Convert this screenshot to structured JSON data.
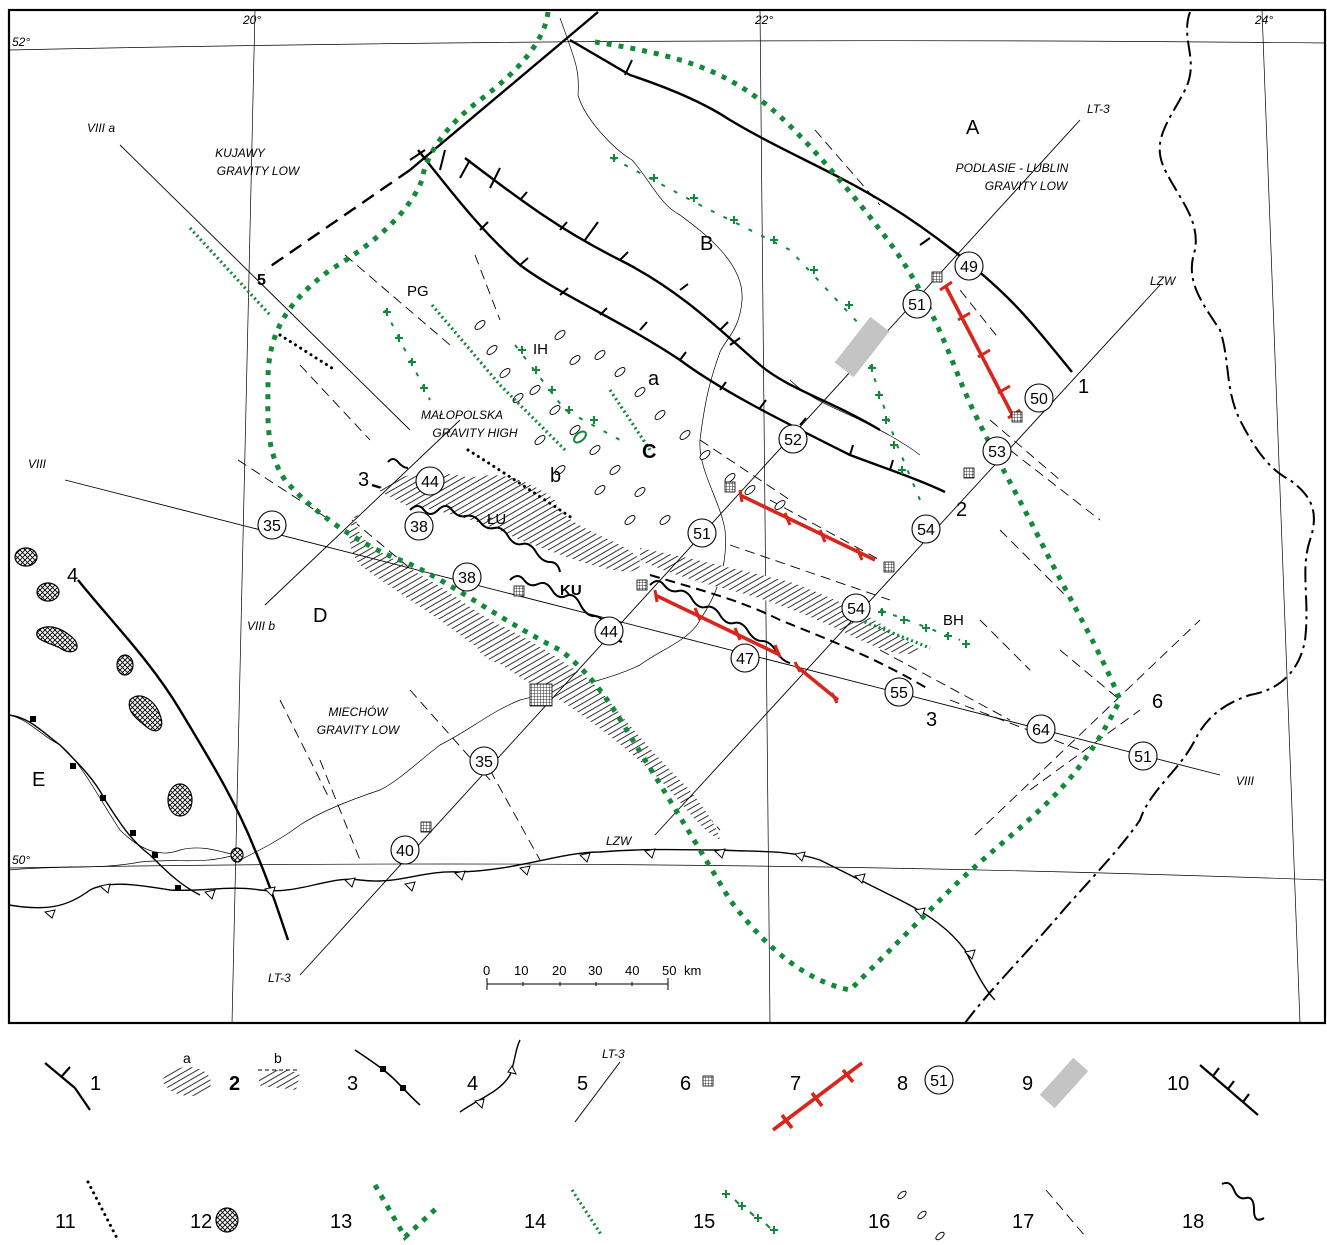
{
  "colors": {
    "ink": "#000000",
    "accent_red": "#d9261c",
    "accent_green": "#13893a",
    "grey_block": "#c4c4c4"
  },
  "graticule": {
    "lon_20": "20°",
    "lon_22": "22°",
    "lon_24": "24°",
    "lat_52": "52°",
    "lat_50": "50°"
  },
  "regions": {
    "A": "A",
    "B": "B",
    "C": "C",
    "D": "D",
    "E": "E",
    "a": "a",
    "b": "b"
  },
  "gravity_labels": {
    "kujawy_1": "KUJAWY",
    "kujawy_2": "GRAVITY LOW",
    "podlasie_1": "PODLASIE - LUBLIN",
    "podlasie_2": "GRAVITY LOW",
    "malopolska_1": "MAŁOPOLSKA",
    "malopolska_2": "GRAVITY HIGH",
    "miechow_1": "MIECHÓW",
    "miechow_2": "GRAVITY LOW"
  },
  "place_labels": {
    "PG": "PG",
    "IH": "IH",
    "LU": "ŁU",
    "KU": "KU",
    "BH": "BH"
  },
  "profile_labels": {
    "VIIIa": "VIII a",
    "VIIIb": "VIII b",
    "VIII_left": "VIII",
    "VIII_right": "VIII",
    "LT3_top": "LT-3",
    "LT3_bottom": "LT-3",
    "LZW_top": "LZW",
    "LZW_bottom": "LZW"
  },
  "zone_numbers": {
    "n1": "1",
    "n2": "2",
    "n3_left": "3",
    "n3_right": "3",
    "n4": "4",
    "n5": "5",
    "n6": "6"
  },
  "depth_circles": [
    "49",
    "51",
    "50",
    "53",
    "52",
    "51",
    "54",
    "54",
    "44",
    "38",
    "38",
    "35",
    "44",
    "47",
    "55",
    "64",
    "51",
    "35",
    "40"
  ],
  "scale_bar": {
    "ticks": [
      "0",
      "10",
      "20",
      "30",
      "40",
      "50"
    ],
    "unit": "km"
  },
  "legend": [
    {
      "num": "1",
      "symbol": "normal-fault-symbol"
    },
    {
      "num": "2",
      "symbol": "hatched-zone-symbol",
      "sub_a": "a",
      "sub_b": "b"
    },
    {
      "num": "3",
      "symbol": "thrust-fault-symbol"
    },
    {
      "num": "4",
      "symbol": "overthrust-front-symbol"
    },
    {
      "num": "5",
      "symbol": "profile-line-symbol",
      "sample": "LT-3"
    },
    {
      "num": "6",
      "symbol": "borehole-grid-symbol"
    },
    {
      "num": "7",
      "symbol": "red-crossed-line-symbol"
    },
    {
      "num": "8",
      "symbol": "depth-circle-symbol",
      "sample": "51"
    },
    {
      "num": "9",
      "symbol": "grey-block-symbol"
    },
    {
      "num": "10",
      "symbol": "ticked-fault-symbol"
    },
    {
      "num": "11",
      "symbol": "black-dotted-line-symbol"
    },
    {
      "num": "12",
      "symbol": "crosshatched-body-symbol"
    },
    {
      "num": "13",
      "symbol": "green-square-dotted-line-symbol"
    },
    {
      "num": "14",
      "symbol": "green-dotted-line-symbol"
    },
    {
      "num": "15",
      "symbol": "green-cross-line-symbol"
    },
    {
      "num": "16",
      "symbol": "ellipse-chain-symbol"
    },
    {
      "num": "17",
      "symbol": "dashed-line-symbol"
    },
    {
      "num": "18",
      "symbol": "wavy-line-symbol"
    }
  ]
}
